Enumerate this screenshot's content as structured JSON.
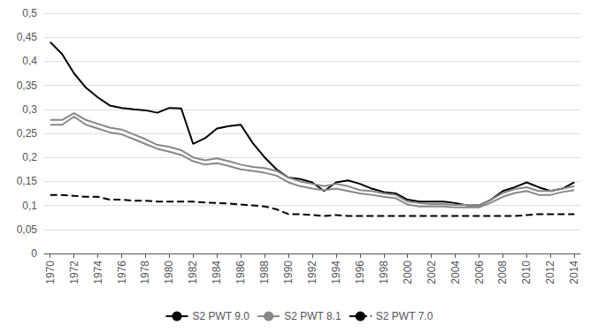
{
  "chart_data": {
    "type": "line",
    "x": [
      1970,
      1971,
      1972,
      1973,
      1974,
      1975,
      1976,
      1977,
      1978,
      1979,
      1980,
      1981,
      1982,
      1983,
      1984,
      1985,
      1986,
      1987,
      1988,
      1989,
      1990,
      1991,
      1992,
      1993,
      1994,
      1995,
      1996,
      1997,
      1998,
      1999,
      2000,
      2001,
      2002,
      2003,
      2004,
      2005,
      2006,
      2007,
      2008,
      2009,
      2010,
      2011,
      2012,
      2013,
      2014
    ],
    "series": [
      {
        "name": "S2 PWT 9.0",
        "color": "#000000",
        "line_style": "solid",
        "values": [
          0.44,
          0.415,
          0.375,
          0.345,
          0.325,
          0.308,
          0.303,
          0.3,
          0.298,
          0.293,
          0.303,
          0.302,
          0.228,
          0.24,
          0.26,
          0.265,
          0.268,
          0.23,
          0.2,
          0.175,
          0.158,
          0.155,
          0.148,
          0.13,
          0.148,
          0.152,
          0.145,
          0.135,
          0.128,
          0.125,
          0.112,
          0.108,
          0.108,
          0.108,
          0.105,
          0.1,
          0.1,
          0.112,
          0.13,
          0.138,
          0.148,
          0.138,
          0.13,
          0.135,
          0.148
        ]
      },
      {
        "name": "S2 PWT 8.1",
        "color": "#888888",
        "line_style": "solid",
        "values": [
          0.268,
          0.268,
          0.285,
          0.268,
          0.26,
          0.252,
          0.248,
          0.238,
          0.228,
          0.218,
          0.212,
          0.205,
          0.192,
          0.185,
          0.188,
          0.182,
          0.175,
          0.172,
          0.168,
          0.162,
          0.148,
          0.14,
          0.135,
          0.132,
          0.135,
          0.13,
          0.125,
          0.122,
          0.118,
          0.115,
          0.102,
          0.098,
          0.098,
          0.098,
          0.096,
          0.096,
          0.096,
          0.106,
          0.118,
          0.126,
          0.13,
          0.122,
          0.122,
          0.128,
          0.132
        ]
      },
      {
        "name": "S2 PWT 8.1",
        "color": "#888888",
        "line_style": "solid",
        "values": [
          0.278,
          0.278,
          0.292,
          0.278,
          0.27,
          0.262,
          0.258,
          0.248,
          0.238,
          0.226,
          0.222,
          0.215,
          0.2,
          0.194,
          0.198,
          0.192,
          0.185,
          0.18,
          0.178,
          0.172,
          0.158,
          0.15,
          0.145,
          0.14,
          0.145,
          0.14,
          0.132,
          0.13,
          0.125,
          0.122,
          0.108,
          0.105,
          0.103,
          0.103,
          0.101,
          0.101,
          0.1,
          0.112,
          0.126,
          0.134,
          0.138,
          0.13,
          0.13,
          0.135,
          0.14
        ]
      },
      {
        "name": "S2 PWT 7.0",
        "color": "#000000",
        "line_style": "dashed",
        "values": [
          0.122,
          0.122,
          0.12,
          0.118,
          0.118,
          0.112,
          0.112,
          0.11,
          0.11,
          0.108,
          0.108,
          0.108,
          0.108,
          0.106,
          0.105,
          0.104,
          0.102,
          0.1,
          0.098,
          0.092,
          0.082,
          0.082,
          0.08,
          0.078,
          0.08,
          0.078,
          0.078,
          0.078,
          0.078,
          0.078,
          0.078,
          0.078,
          0.078,
          0.078,
          0.078,
          0.078,
          0.078,
          0.078,
          0.078,
          0.078,
          0.08,
          0.082,
          0.082,
          0.082,
          0.082
        ]
      }
    ],
    "xlim": [
      1969.5,
      2014.5
    ],
    "xticks": [
      1970,
      1972,
      1974,
      1976,
      1978,
      1980,
      1982,
      1984,
      1986,
      1988,
      1990,
      1992,
      1994,
      1996,
      1998,
      2000,
      2002,
      2004,
      2006,
      2008,
      2010,
      2012,
      2014
    ],
    "ylim": [
      0,
      0.5
    ],
    "yticks": [
      0,
      {
        "value": 0.05,
        "label": "0,05"
      },
      {
        "value": 0.1,
        "label": "0,1"
      },
      {
        "value": 0.15,
        "label": "0,15"
      },
      {
        "value": 0.2,
        "label": "0,2"
      },
      {
        "value": 0.25,
        "label": "0,25"
      },
      {
        "value": 0.3,
        "label": "0,3"
      },
      {
        "value": 0.35,
        "label": "0,35"
      },
      {
        "value": 0.4,
        "label": "0,4"
      },
      {
        "value": 0.45,
        "label": "0,45"
      },
      {
        "value": 0.5,
        "label": "0,5"
      }
    ],
    "grid": true,
    "legend": "bottom"
  }
}
